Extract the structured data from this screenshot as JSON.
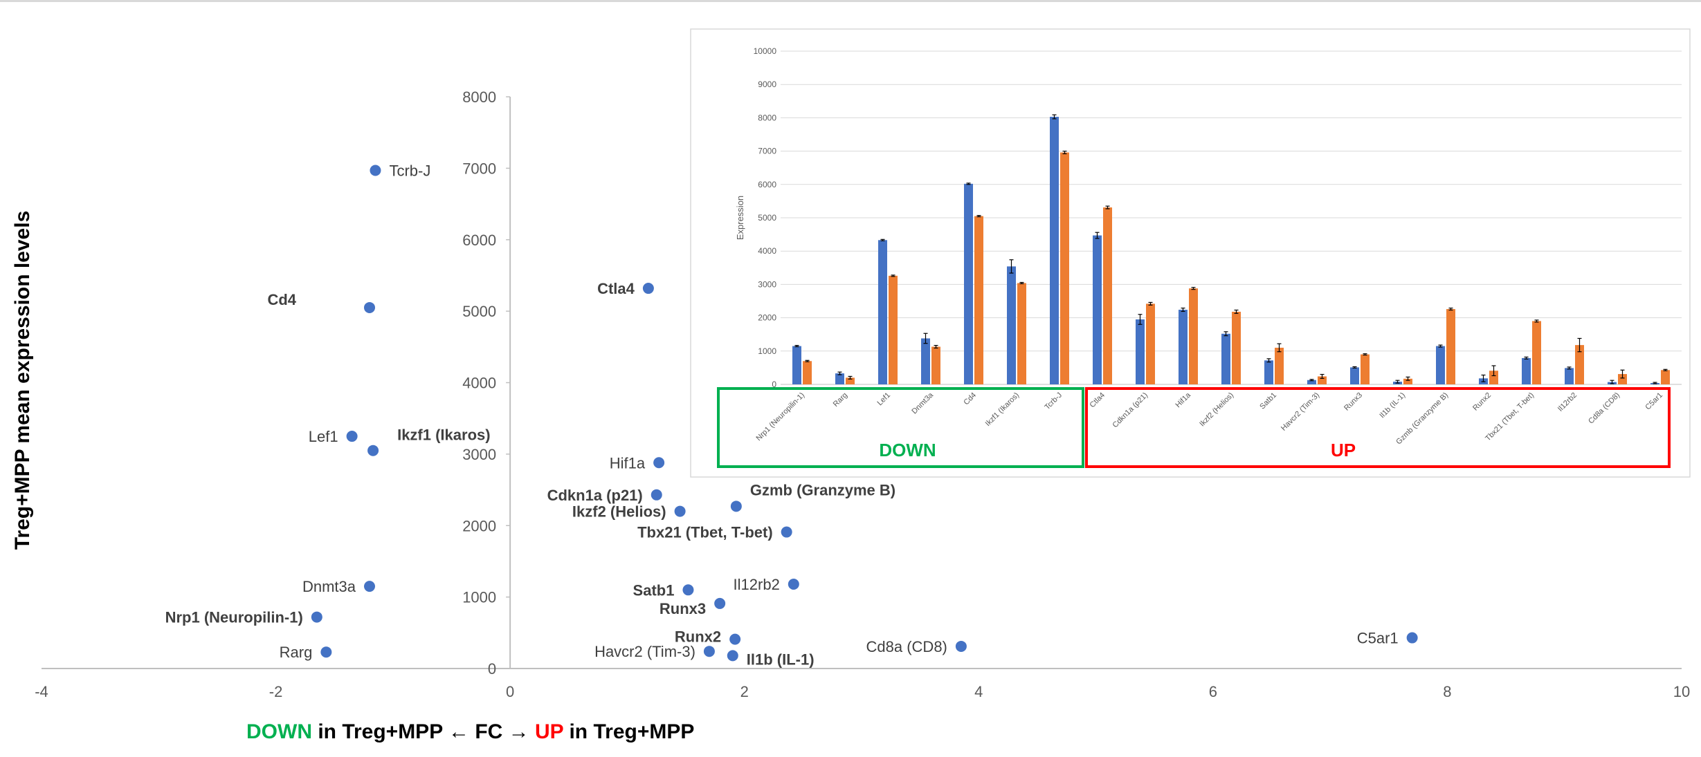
{
  "colors": {
    "point": "#4472c4",
    "bar_series_1": "#4472c4",
    "bar_series_2": "#ed7d31",
    "down": "#00b050",
    "up": "#ff0000",
    "axis": "#bfbfbf",
    "tick_text": "#595959",
    "label_text": "#404040"
  },
  "y_axis_title": "Treg+MPP mean expression levels",
  "x_axis_title": {
    "down": "DOWN",
    "middle": " in Treg+MPP ← FC → ",
    "up": "UP",
    "end": " in Treg+MPP"
  },
  "chart_data": [
    {
      "type": "scatter",
      "title": "",
      "xlabel": "DOWN in Treg+MPP ← FC → UP in Treg+MPP",
      "ylabel": "Treg+MPP mean expression levels",
      "xlim": [
        -4,
        10
      ],
      "ylim": [
        0,
        8000
      ],
      "x_ticks": [
        "-4",
        "-2",
        "0",
        "2",
        "4",
        "6",
        "8",
        "10"
      ],
      "y_ticks": [
        "0",
        "1000",
        "2000",
        "3000",
        "4000",
        "5000",
        "6000",
        "7000",
        "8000"
      ],
      "grid": false,
      "points": [
        {
          "label": "Tcrb-J",
          "x": -1.15,
          "y": 6970,
          "bold": false
        },
        {
          "label": "Cd4",
          "x": -1.2,
          "y": 5050,
          "bold": true
        },
        {
          "label": "Lef1",
          "x": -1.35,
          "y": 3250,
          "bold": false
        },
        {
          "label": "Ikzf1 (Ikaros)",
          "x": -1.17,
          "y": 3050,
          "bold": true
        },
        {
          "label": "Dnmt3a",
          "x": -1.2,
          "y": 1150,
          "bold": false
        },
        {
          "label": "Nrp1 (Neuropilin-1)",
          "x": -1.65,
          "y": 720,
          "bold": true
        },
        {
          "label": "Rarg",
          "x": -1.57,
          "y": 230,
          "bold": false
        },
        {
          "label": "Ctla4",
          "x": 1.18,
          "y": 5320,
          "bold": true
        },
        {
          "label": "Hif1a",
          "x": 1.27,
          "y": 2880,
          "bold": false
        },
        {
          "label": "Cdkn1a (p21)",
          "x": 1.25,
          "y": 2430,
          "bold": true
        },
        {
          "label": "Ikzf2 (Helios)",
          "x": 1.45,
          "y": 2200,
          "bold": true
        },
        {
          "label": "Gzmb (Granzyme B)",
          "x": 1.93,
          "y": 2270,
          "bold": true
        },
        {
          "label": "Tbx21 (Tbet, T-bet)",
          "x": 2.36,
          "y": 1910,
          "bold": true
        },
        {
          "label": "Satb1",
          "x": 1.52,
          "y": 1100,
          "bold": true
        },
        {
          "label": "Il12rb2",
          "x": 2.42,
          "y": 1180,
          "bold": false
        },
        {
          "label": "Runx3",
          "x": 1.79,
          "y": 910,
          "bold": true
        },
        {
          "label": "Runx2",
          "x": 1.92,
          "y": 410,
          "bold": true
        },
        {
          "label": "Havcr2 (Tim-3)",
          "x": 1.7,
          "y": 240,
          "bold": false
        },
        {
          "label": "Il1b (IL-1)",
          "x": 1.9,
          "y": 180,
          "bold": true
        },
        {
          "label": "Cd8a (CD8)",
          "x": 3.85,
          "y": 310,
          "bold": false
        },
        {
          "label": "C5ar1",
          "x": 7.7,
          "y": 430,
          "bold": false
        }
      ]
    },
    {
      "type": "bar",
      "title": "",
      "ylabel": "Expression",
      "ylim": [
        0,
        10000
      ],
      "y_ticks": [
        "0",
        "1000",
        "2000",
        "3000",
        "4000",
        "5000",
        "6000",
        "7000",
        "8000",
        "9000",
        "10000"
      ],
      "grid": true,
      "categories": [
        "Nrp1 (Neuropilin-1)",
        "Rarg",
        "Lef1",
        "Dnmt3a",
        "Cd4",
        "Ikzf1 (Ikaros)",
        "Tcrb-J",
        "Ctla4",
        "Cdkn1a (p21)",
        "Hif1a",
        "Ikzf2 (Helios)",
        "Satb1",
        "Havcr2 (Tim-3)",
        "Runx3",
        "Il1b (IL-1)",
        "Gzmb (Granzyme B)",
        "Runx2",
        "Tbx21 (Tbet, T-bet)",
        "Il12rb2",
        "Cd8a (CD8)",
        "C5ar1"
      ],
      "series": [
        {
          "values": [
            1150,
            330,
            4330,
            1380,
            6020,
            3540,
            8030,
            4470,
            1950,
            2240,
            1520,
            720,
            130,
            510,
            80,
            1150,
            180,
            790,
            490,
            70,
            40
          ],
          "errors": [
            20,
            40,
            20,
            150,
            20,
            200,
            60,
            90,
            150,
            50,
            60,
            50,
            20,
            20,
            40,
            30,
            100,
            30,
            30,
            50,
            20
          ]
        },
        {
          "values": [
            700,
            200,
            3260,
            1130,
            5050,
            3040,
            6960,
            5310,
            2420,
            2880,
            2180,
            1100,
            240,
            900,
            170,
            2260,
            410,
            1900,
            1180,
            310,
            430
          ],
          "errors": [
            20,
            40,
            20,
            40,
            20,
            20,
            40,
            40,
            40,
            30,
            50,
            120,
            60,
            20,
            50,
            30,
            150,
            30,
            200,
            120,
            20
          ]
        }
      ],
      "groups": [
        {
          "label": "DOWN",
          "from": 0,
          "to": 6
        },
        {
          "label": "UP",
          "from": 7,
          "to": 20
        }
      ]
    }
  ]
}
